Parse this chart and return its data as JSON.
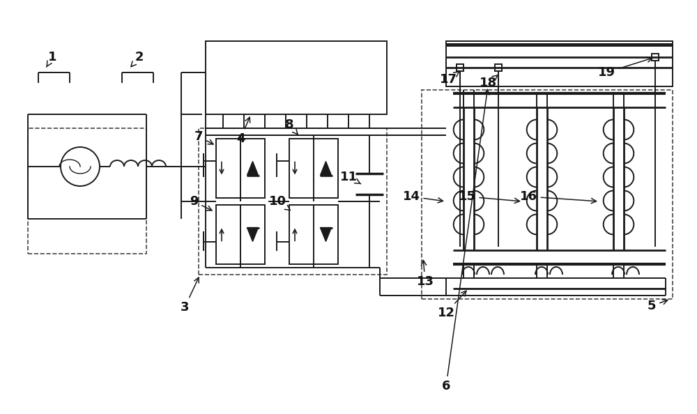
{
  "bg_color": "#ffffff",
  "lc": "#1a1a1a",
  "dc": "#444444",
  "lw": 1.4,
  "lw_thick": 2.5,
  "lw_dash": 1.2,
  "fs": 13
}
